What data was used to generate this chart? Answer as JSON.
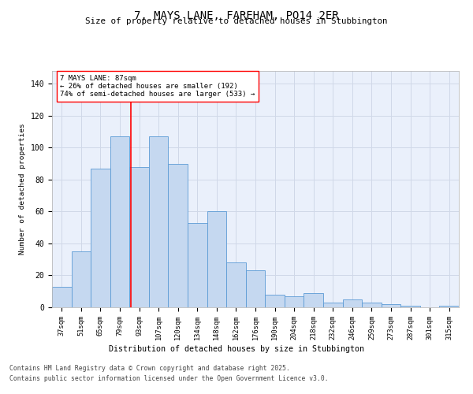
{
  "title1": "7, MAYS LANE, FAREHAM, PO14 2ER",
  "title2": "Size of property relative to detached houses in Stubbington",
  "xlabel": "Distribution of detached houses by size in Stubbington",
  "ylabel": "Number of detached properties",
  "categories": [
    "37sqm",
    "51sqm",
    "65sqm",
    "79sqm",
    "93sqm",
    "107sqm",
    "120sqm",
    "134sqm",
    "148sqm",
    "162sqm",
    "176sqm",
    "190sqm",
    "204sqm",
    "218sqm",
    "232sqm",
    "246sqm",
    "259sqm",
    "273sqm",
    "287sqm",
    "301sqm",
    "315sqm"
  ],
  "values": [
    13,
    35,
    87,
    107,
    88,
    107,
    90,
    53,
    60,
    28,
    23,
    8,
    7,
    9,
    3,
    5,
    3,
    2,
    1,
    0,
    1
  ],
  "bar_color": "#c5d8f0",
  "bar_edge_color": "#5b9bd5",
  "grid_color": "#d0d8e8",
  "background_color": "#eaf0fb",
  "annotation_text": "7 MAYS LANE: 87sqm\n← 26% of detached houses are smaller (192)\n74% of semi-detached houses are larger (533) →",
  "ylim": [
    0,
    148
  ],
  "yticks": [
    0,
    20,
    40,
    60,
    80,
    100,
    120,
    140
  ],
  "footer1": "Contains HM Land Registry data © Crown copyright and database right 2025.",
  "footer2": "Contains public sector information licensed under the Open Government Licence v3.0."
}
